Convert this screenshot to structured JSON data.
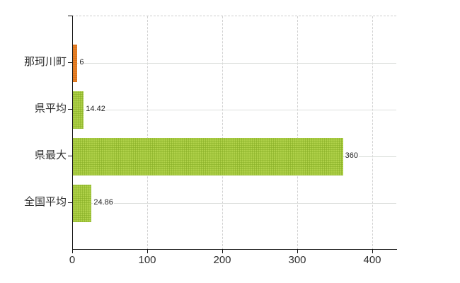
{
  "chart_data": {
    "type": "bar",
    "orientation": "horizontal",
    "title": "",
    "categories": [
      "那珂川町",
      "県平均",
      "県最大",
      "全国平均"
    ],
    "values": [
      6,
      14.42,
      360,
      24.86
    ],
    "value_labels": [
      "6",
      "14.42",
      "360",
      "24.86"
    ],
    "series_colors": [
      "orange",
      "green",
      "green",
      "green"
    ],
    "x_ticks": [
      0,
      100,
      200,
      300,
      400
    ],
    "x_tick_labels": [
      "0",
      "100",
      "200",
      "300",
      "400"
    ],
    "xlim": [
      0,
      432
    ],
    "grid": {
      "vertical": "dashed",
      "horizontal": "solid",
      "top_border": "dashed"
    },
    "legend": "none"
  },
  "colors": {
    "bar_orange": "#e8842c",
    "bar_orange_dot": "#d2660f",
    "bar_green": "#a3c93c",
    "bar_green_dot": "#8db22c",
    "gridline": "#d2d2d2",
    "axis": "#151515",
    "text": "#2e2e2e",
    "background": "#ffffff"
  }
}
